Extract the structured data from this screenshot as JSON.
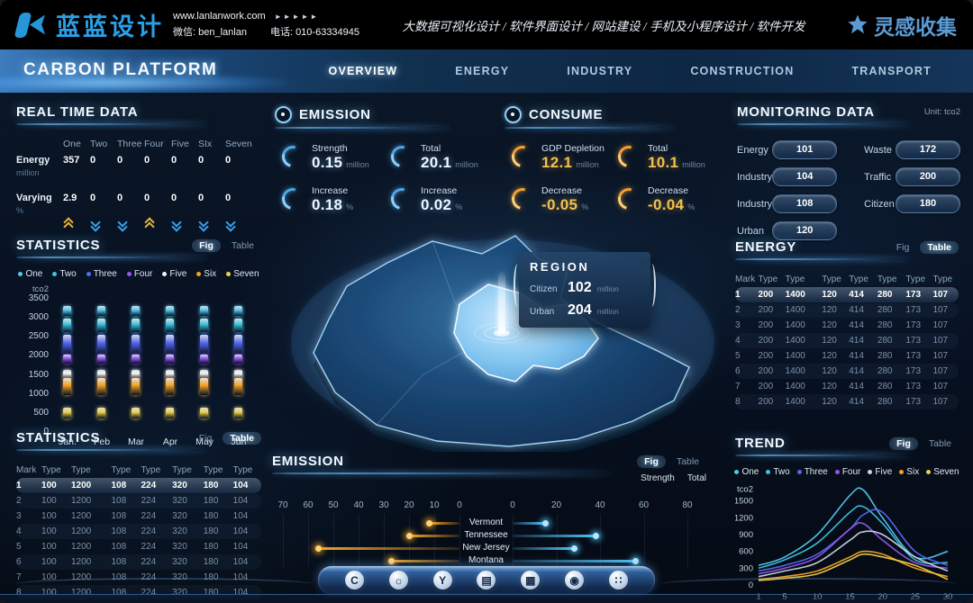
{
  "colors": {
    "cyan": "#4fc3f7",
    "orange": "#f5a623",
    "navy_bg": "#071020",
    "accent_glow": "#8fd2ff",
    "gold_text": "#f2c14e"
  },
  "topbar": {
    "logo_text": "蓝蓝设计",
    "website": "www.lanlanwork.com",
    "arrows": "►►►►►",
    "wechat": "微信: ben_lanlan",
    "phone": "电话: 010-63334945",
    "services": "大数据可视化设计 / 软件界面设计 / 网站建设 / 手机及小程序设计 / 软件开发",
    "collect_logo": "灵感收集"
  },
  "nav": {
    "title": "CARBON PLATFORM",
    "items": [
      {
        "label": "OVERVIEW",
        "active": true
      },
      {
        "label": "ENERGY",
        "active": false
      },
      {
        "label": "INDUSTRY",
        "active": false
      },
      {
        "label": "CONSTRUCTION",
        "active": false
      },
      {
        "label": "TRANSPORT",
        "active": false
      }
    ]
  },
  "realtime": {
    "title": "REAL TIME DATA",
    "columns": [
      "One",
      "Two",
      "Three",
      "Four",
      "Five",
      "SIx",
      "Seven"
    ],
    "rows": [
      {
        "label": "Energy",
        "unit": "million",
        "values": [
          "357",
          "0",
          "0",
          "0",
          "0",
          "0",
          "0"
        ]
      },
      {
        "label": "Varying",
        "unit": "%",
        "values": [
          "2.9",
          "0",
          "0",
          "0",
          "0",
          "0",
          "0"
        ]
      }
    ],
    "trends": [
      "up",
      "down",
      "down",
      "up",
      "down",
      "down",
      "down"
    ]
  },
  "emission_panel": {
    "title": "EMISSION",
    "stats": [
      {
        "label": "Strength",
        "value": "0.15",
        "unit": "million"
      },
      {
        "label": "Total",
        "value": "20.1",
        "unit": "million"
      },
      {
        "label": "Increase",
        "value": "0.18",
        "unit": "%"
      },
      {
        "label": "Increase",
        "value": "0.02",
        "unit": "%"
      }
    ]
  },
  "consume_panel": {
    "title": "CONSUME",
    "stats": [
      {
        "label": "GDP Depletion",
        "value": "12.1",
        "unit": "million"
      },
      {
        "label": "Total",
        "value": "10.1",
        "unit": "million"
      },
      {
        "label": "Decrease",
        "value": "-0.05",
        "unit": "%"
      },
      {
        "label": "Decrease",
        "value": "-0.04",
        "unit": "%"
      }
    ]
  },
  "monitoring": {
    "title": "MONITORING DATA",
    "unit": "Unit: tco2",
    "items": [
      {
        "label": "Energy",
        "value": "101"
      },
      {
        "label": "Industry",
        "value": "104"
      },
      {
        "label": "Industry",
        "value": "108"
      },
      {
        "label": "Urban",
        "value": "120"
      },
      {
        "label": "Waste",
        "value": "172"
      },
      {
        "label": "Traffic",
        "value": "200"
      },
      {
        "label": "Citizen",
        "value": "180"
      }
    ]
  },
  "region_popup": {
    "title": "REGION",
    "items": [
      {
        "label": "Citizen",
        "value": "102",
        "unit": "million"
      },
      {
        "label": "Urban",
        "value": "204",
        "unit": "million"
      }
    ]
  },
  "statistics_fig": {
    "title": "STATISTICS",
    "toggle": {
      "fig": "Fig",
      "table": "Table",
      "active": "Fig"
    },
    "chart_data": {
      "type": "bar",
      "unit_label": "tco2",
      "ylim": [
        0,
        3500
      ],
      "y_ticks": [
        3500,
        3000,
        2500,
        2000,
        1500,
        1000,
        500,
        0
      ],
      "categories": [
        "Jan.",
        "Feb",
        "Mar",
        "Apr",
        "May",
        "Jun"
      ],
      "legend": [
        {
          "name": "One",
          "color": "#53c7f0"
        },
        {
          "name": "Two",
          "color": "#3ec4e0"
        },
        {
          "name": "Three",
          "color": "#5569f2"
        },
        {
          "name": "Four",
          "color": "#9257ee"
        },
        {
          "name": "Five",
          "color": "#f2f7fc"
        },
        {
          "name": "Six",
          "color": "#f5a325"
        },
        {
          "name": "Seven",
          "color": "#ecd14a"
        }
      ],
      "segments_per_month": [
        {
          "name": "One",
          "color": "#53c7f0",
          "from": 3050,
          "to": 3320
        },
        {
          "name": "Two",
          "color": "#3ec4e0",
          "from": 2620,
          "to": 2980
        },
        {
          "name": "Three",
          "color": "#5569f2",
          "from": 2060,
          "to": 2560
        },
        {
          "name": "Four",
          "color": "#9257ee",
          "from": 1790,
          "to": 2040
        },
        {
          "name": "Five",
          "color": "#f2f7fc",
          "from": 1400,
          "to": 1640
        },
        {
          "name": "Six",
          "color": "#f5a325",
          "from": 960,
          "to": 1430
        },
        {
          "name": "Seven",
          "color": "#ecd14a",
          "from": 360,
          "to": 640
        }
      ]
    }
  },
  "statistics_table": {
    "title": "STATISTICS",
    "toggle": {
      "fig": "Fig",
      "table": "Table",
      "active": "Table"
    },
    "headers": [
      "Mark",
      "Type",
      "Type",
      "Type",
      "Type",
      "Type",
      "Type",
      "Type"
    ],
    "rows": [
      [
        "1",
        "100",
        "1200",
        "108",
        "224",
        "320",
        "180",
        "104"
      ],
      [
        "2",
        "100",
        "1200",
        "108",
        "224",
        "320",
        "180",
        "104"
      ],
      [
        "3",
        "100",
        "1200",
        "108",
        "224",
        "320",
        "180",
        "104"
      ],
      [
        "4",
        "100",
        "1200",
        "108",
        "224",
        "320",
        "180",
        "104"
      ],
      [
        "5",
        "100",
        "1200",
        "108",
        "224",
        "320",
        "180",
        "104"
      ],
      [
        "6",
        "100",
        "1200",
        "108",
        "224",
        "320",
        "180",
        "104"
      ],
      [
        "7",
        "100",
        "1200",
        "108",
        "224",
        "320",
        "180",
        "104"
      ],
      [
        "8",
        "100",
        "1200",
        "108",
        "224",
        "320",
        "180",
        "104"
      ]
    ]
  },
  "energy_table": {
    "title": "ENERGY",
    "toggle": {
      "fig": "Fig",
      "table": "Table",
      "active": "Table"
    },
    "headers": [
      "Mark",
      "Type",
      "Type",
      "Type",
      "Type",
      "Type",
      "Type",
      "Type"
    ],
    "rows": [
      [
        "1",
        "200",
        "1400",
        "120",
        "414",
        "280",
        "173",
        "107"
      ],
      [
        "2",
        "200",
        "1400",
        "120",
        "414",
        "280",
        "173",
        "107"
      ],
      [
        "3",
        "200",
        "1400",
        "120",
        "414",
        "280",
        "173",
        "107"
      ],
      [
        "4",
        "200",
        "1400",
        "120",
        "414",
        "280",
        "173",
        "107"
      ],
      [
        "5",
        "200",
        "1400",
        "120",
        "414",
        "280",
        "173",
        "107"
      ],
      [
        "6",
        "200",
        "1400",
        "120",
        "414",
        "280",
        "173",
        "107"
      ],
      [
        "7",
        "200",
        "1400",
        "120",
        "414",
        "280",
        "173",
        "107"
      ],
      [
        "8",
        "200",
        "1400",
        "120",
        "414",
        "280",
        "173",
        "107"
      ]
    ]
  },
  "trend": {
    "title": "TREND",
    "toggle": {
      "fig": "Fig",
      "table": "Table",
      "active": "Fig"
    },
    "chart_data": {
      "type": "line",
      "unit_label": "tco2",
      "ylim": [
        0,
        1800
      ],
      "y_ticks": [
        1500,
        1200,
        900,
        600,
        300,
        0
      ],
      "x_ticks": [
        1,
        5,
        10,
        15,
        20,
        25,
        30
      ],
      "xlim": [
        1,
        30
      ],
      "x": [
        1,
        5,
        10,
        15,
        17,
        20,
        25,
        30
      ],
      "series": [
        {
          "name": "One",
          "color": "#53c7f0",
          "values": [
            350,
            500,
            900,
            1600,
            1700,
            1200,
            500,
            600
          ]
        },
        {
          "name": "Two",
          "color": "#3ec4e0",
          "values": [
            300,
            450,
            750,
            1300,
            1400,
            1100,
            450,
            400
          ]
        },
        {
          "name": "Three",
          "color": "#5569f2",
          "values": [
            250,
            350,
            550,
            1000,
            1250,
            1300,
            600,
            350
          ]
        },
        {
          "name": "Four",
          "color": "#9257ee",
          "values": [
            200,
            300,
            500,
            1000,
            1100,
            800,
            400,
            300
          ]
        },
        {
          "name": "Five",
          "color": "#c9d6e2",
          "values": [
            150,
            250,
            400,
            800,
            950,
            900,
            500,
            250
          ]
        },
        {
          "name": "Six",
          "color": "#f5a325",
          "values": [
            100,
            150,
            250,
            500,
            600,
            550,
            300,
            150
          ]
        },
        {
          "name": "Seven",
          "color": "#ecd14a",
          "values": [
            80,
            120,
            200,
            450,
            550,
            500,
            350,
            100
          ]
        }
      ]
    }
  },
  "emission_chart": {
    "title": "EMISSION",
    "toggle": {
      "fig": "Fig",
      "table": "Table",
      "active": "Fig"
    },
    "chart_data": {
      "type": "butterfly-bar",
      "left_ticks": [
        70,
        60,
        50,
        40,
        30,
        20,
        10,
        0
      ],
      "right_ticks": [
        0,
        20,
        40,
        60,
        80
      ],
      "left_max": 70,
      "right_max": 80,
      "categories": [
        "Vermont",
        "Tennessee",
        "New Jersey",
        "Montana"
      ],
      "series": [
        {
          "name": "Strength",
          "color": "#f5a623",
          "side": "left",
          "values": [
            12,
            20,
            56,
            27
          ]
        },
        {
          "name": "Total",
          "color": "#4fc3f7",
          "side": "right",
          "values": [
            15,
            38,
            28,
            56
          ]
        }
      ]
    }
  },
  "dock": {
    "icons": [
      {
        "name": "carbon-icon",
        "glyph": "C"
      },
      {
        "name": "gear-icon",
        "glyph": "☼"
      },
      {
        "name": "y-badge-icon",
        "glyph": "Y"
      },
      {
        "name": "charging-station-icon",
        "glyph": "▤"
      },
      {
        "name": "monitor-chart-icon",
        "glyph": "▦"
      },
      {
        "name": "nut-icon",
        "glyph": "◉"
      },
      {
        "name": "apps-icon",
        "glyph": "∷"
      }
    ]
  }
}
